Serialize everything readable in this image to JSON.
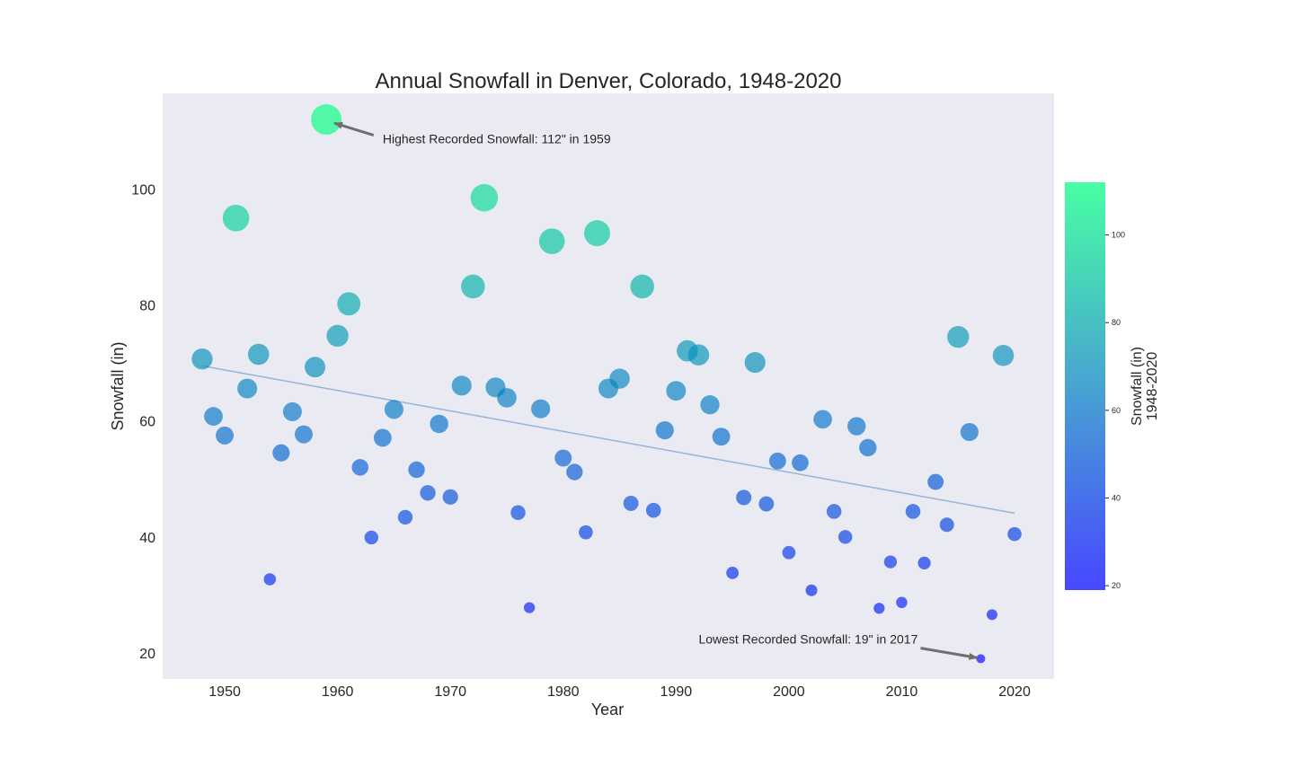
{
  "chart_data": {
    "type": "scatter",
    "title": "Annual Snowfall in Denver, Colorado, 1948-2020",
    "xlabel": "Year",
    "ylabel": "Snowfall (in)",
    "xlim": [
      1944.5,
      2023.5
    ],
    "ylim": [
      15.5,
      116.5
    ],
    "xticks": [
      1950,
      1960,
      1970,
      1980,
      1990,
      2000,
      2010,
      2020
    ],
    "yticks": [
      20,
      40,
      60,
      80,
      100
    ],
    "grid": false,
    "background": "#eaeaf2",
    "colormap": {
      "name": "winter",
      "low": "#0000ff",
      "high": "#00ff80",
      "alpha": 0.65
    },
    "x": [
      1948,
      1949,
      1950,
      1951,
      1952,
      1953,
      1954,
      1955,
      1956,
      1957,
      1958,
      1959,
      1960,
      1961,
      1962,
      1963,
      1964,
      1965,
      1966,
      1967,
      1968,
      1969,
      1970,
      1971,
      1972,
      1973,
      1974,
      1975,
      1976,
      1977,
      1978,
      1979,
      1980,
      1981,
      1982,
      1983,
      1984,
      1985,
      1986,
      1987,
      1988,
      1989,
      1990,
      1991,
      1992,
      1993,
      1994,
      1995,
      1996,
      1997,
      1998,
      1999,
      2000,
      2001,
      2002,
      2003,
      2004,
      2005,
      2006,
      2007,
      2008,
      2009,
      2010,
      2011,
      2012,
      2013,
      2014,
      2015,
      2016,
      2017,
      2018,
      2019,
      2020
    ],
    "y": [
      70.7,
      60.8,
      57.5,
      95.0,
      65.6,
      71.5,
      32.7,
      54.5,
      61.6,
      57.7,
      69.3,
      112.0,
      74.7,
      80.2,
      52.0,
      39.9,
      57.1,
      62.0,
      43.4,
      51.6,
      47.6,
      59.5,
      46.9,
      66.1,
      83.2,
      98.5,
      65.8,
      64.0,
      44.2,
      27.8,
      62.1,
      91.0,
      53.6,
      51.2,
      40.8,
      92.4,
      65.6,
      67.3,
      45.8,
      83.2,
      44.6,
      58.4,
      65.2,
      72.1,
      71.4,
      62.8,
      57.3,
      33.8,
      46.8,
      70.1,
      45.7,
      53.1,
      37.3,
      52.8,
      30.8,
      60.3,
      44.4,
      40.0,
      59.1,
      55.4,
      27.7,
      35.7,
      28.7,
      44.4,
      35.5,
      49.5,
      42.1,
      74.5,
      58.1,
      19.0,
      26.6,
      71.3,
      40.5
    ],
    "trendline": {
      "x": [
        1948,
        2020
      ],
      "y": [
        69.5,
        44.1
      ]
    },
    "annotations": [
      {
        "text": "Highest Recorded Snowfall: 112\" in 1959",
        "point": [
          1959,
          112.0
        ],
        "text_at": [
          1964,
          107.9
        ]
      },
      {
        "text": "Lowest Recorded Snowfall: 19\" in 2017",
        "point": [
          2017,
          19.0
        ],
        "text_at": [
          1992,
          21.6
        ]
      }
    ],
    "colorbar": {
      "label_line1": "Snowfall (in)",
      "label_line2": "1948-2020",
      "range": [
        19,
        112
      ],
      "ticks": [
        20,
        40,
        60,
        80,
        100
      ]
    }
  }
}
